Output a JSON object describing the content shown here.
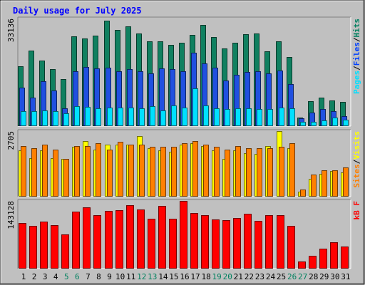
{
  "chart_data": {
    "type": "bar",
    "title": "Daily usage for July 2025",
    "categories": [
      "1",
      "2",
      "3",
      "4",
      "5",
      "6",
      "7",
      "8",
      "9",
      "10",
      "11",
      "12",
      "13",
      "14",
      "15",
      "16",
      "17",
      "18",
      "19",
      "20",
      "21",
      "22",
      "23",
      "24",
      "25",
      "26",
      "27",
      "28",
      "29",
      "30",
      "31"
    ],
    "weekend_days": [
      "5",
      "6",
      "12",
      "13",
      "19",
      "20",
      "26",
      "27"
    ],
    "panels": [
      {
        "id": "hits_files_pages",
        "ymax_label": "33136",
        "ymax": 33136,
        "legend": [
          {
            "text": "Pages",
            "color": "#00e0ff"
          },
          {
            "text": "/",
            "color": "#000000"
          },
          {
            "text": "Files",
            "color": "#0040ff"
          },
          {
            "text": "/",
            "color": "#000000"
          },
          {
            "text": "Hits",
            "color": "#008060"
          }
        ],
        "series": [
          {
            "name": "Hits",
            "color": "#108060",
            "values": [
              18900,
              23700,
              20500,
              18000,
              14700,
              28300,
              27500,
              28400,
              33136,
              30300,
              31400,
              29000,
              26600,
              26700,
              25600,
              26300,
              28600,
              31800,
              28000,
              24400,
              26100,
              28900,
              29000,
              23400,
              26600,
              21800,
              2600,
              7900,
              9000,
              8100,
              7600
            ]
          },
          {
            "name": "Files",
            "color": "#2050e0",
            "values": [
              12100,
              9000,
              14000,
              11300,
              5600,
              17300,
              18600,
              18100,
              18300,
              17300,
              17800,
              17200,
              16500,
              18200,
              17900,
              17300,
              23100,
              19800,
              18300,
              14300,
              16200,
              17100,
              17200,
              16600,
              17500,
              13200,
              2400,
              4200,
              5300,
              4600,
              3200
            ]
          },
          {
            "name": "Pages",
            "color": "#00e0ff",
            "values": [
              4600,
              4600,
              4900,
              4600,
              4000,
              6300,
              6000,
              5700,
              5900,
              5900,
              5800,
              5600,
              6200,
              4900,
              6400,
              5900,
              11800,
              6600,
              5500,
              5300,
              5500,
              5600,
              5400,
              5300,
              5800,
              5600,
              1300,
              1300,
              1900,
              2700,
              2100
            ]
          }
        ]
      },
      {
        "id": "visits_sites",
        "ymax_label": "2705",
        "ymax": 2705,
        "legend": [
          {
            "text": "Sites",
            "color": "#ff8000"
          },
          {
            "text": "/",
            "color": "#000000"
          },
          {
            "text": "Visits",
            "color": "#ffff00"
          }
        ],
        "series": [
          {
            "name": "Visits",
            "color": "#ffff00",
            "values": [
              1900,
              1600,
              1900,
              1600,
              1550,
              2050,
              2300,
              1950,
              2150,
              2150,
              2150,
              2500,
              2000,
              1900,
              1850,
              2150,
              2200,
              2100,
              1900,
              1550,
              1900,
              1800,
              1750,
              2100,
              2705,
              2000,
              200,
              730,
              950,
              1050,
              1000
            ]
          },
          {
            "name": "Sites",
            "color": "#ff8000",
            "values": [
              2100,
              2000,
              2150,
              1950,
              1550,
              2100,
              2100,
              2200,
              1950,
              2250,
              2150,
              2150,
              2050,
              2050,
              2050,
              2200,
              2300,
              2150,
              2050,
              1950,
              2100,
              2000,
              2000,
              2000,
              2050,
              2200,
              290,
              900,
              1100,
              1100,
              1200
            ]
          }
        ]
      },
      {
        "id": "kbytes",
        "ymax_label": "143128",
        "ymax": 143128,
        "legend": [
          {
            "text": "KBytes",
            "color": "#ff0000"
          }
        ],
        "legend_display": "kB F",
        "series": [
          {
            "name": "KBytes",
            "color": "#ff0000",
            "values": [
              97000,
              90700,
              100000,
              92000,
              72800,
              120900,
              129400,
              113600,
              121300,
              123100,
              134300,
              125500,
              106100,
              132400,
              106100,
              143128,
              117200,
              113500,
              103500,
              102700,
              107400,
              116400,
              100400,
              113100,
              112700,
              90900,
              15100,
              27600,
              41900,
              55100,
              46900
            ]
          }
        ]
      }
    ]
  }
}
